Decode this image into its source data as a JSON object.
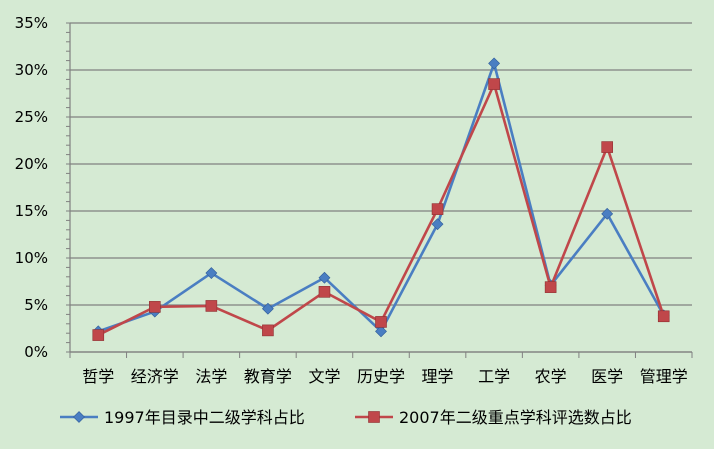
{
  "chart_data": {
    "type": "line",
    "categories": [
      "哲学",
      "经济学",
      "法学",
      "教育学",
      "文学",
      "历史学",
      "理学",
      "工学",
      "农学",
      "医学",
      "管理学"
    ],
    "series": [
      {
        "name": "1997年目录中二级学科占比",
        "color": "#4a7ec2",
        "marker": "diamond",
        "values": [
          2.2,
          4.3,
          8.4,
          4.6,
          7.9,
          2.2,
          13.6,
          30.7,
          7.1,
          14.7,
          3.9
        ]
      },
      {
        "name": "2007年二级重点学科评选数占比",
        "color": "#c0474a",
        "marker": "square",
        "values": [
          1.8,
          4.8,
          4.9,
          2.3,
          6.4,
          3.2,
          15.2,
          28.5,
          6.9,
          21.8,
          3.8
        ]
      }
    ],
    "y_ticks": [
      "0%",
      "5%",
      "10%",
      "15%",
      "20%",
      "25%",
      "30%",
      "35%"
    ],
    "ylim": [
      0,
      35
    ],
    "y_unit": "%",
    "grid": true,
    "legend_position": "bottom",
    "title": "",
    "xlabel": "",
    "ylabel": ""
  }
}
